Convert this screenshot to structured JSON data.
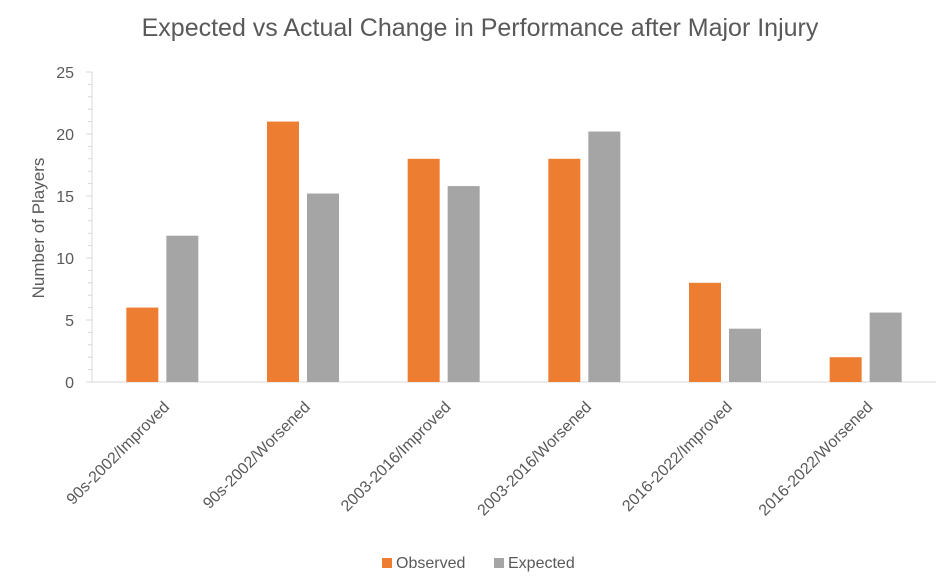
{
  "chart_data": {
    "type": "bar",
    "title": "Expected vs Actual Change in Performance after Major Injury",
    "xlabel": "",
    "ylabel": "Number of Players",
    "ylim": [
      0,
      25
    ],
    "yticks": [
      0,
      5,
      10,
      15,
      20,
      25
    ],
    "grid": false,
    "legend_position": "bottom",
    "categories": [
      "90s-2002/Improved",
      "90s-2002/Worsened",
      "2003-2016/Improved",
      "2003-2016/Worsened",
      "2016-2022/Improved",
      "2016-2022/Worsened"
    ],
    "series": [
      {
        "name": "Observed",
        "color": "#ED7D31",
        "values": [
          6,
          21,
          18,
          18,
          8,
          2
        ]
      },
      {
        "name": "Expected",
        "color": "#A5A5A5",
        "values": [
          11.8,
          15.2,
          15.8,
          20.2,
          4.3,
          5.6
        ]
      }
    ]
  }
}
